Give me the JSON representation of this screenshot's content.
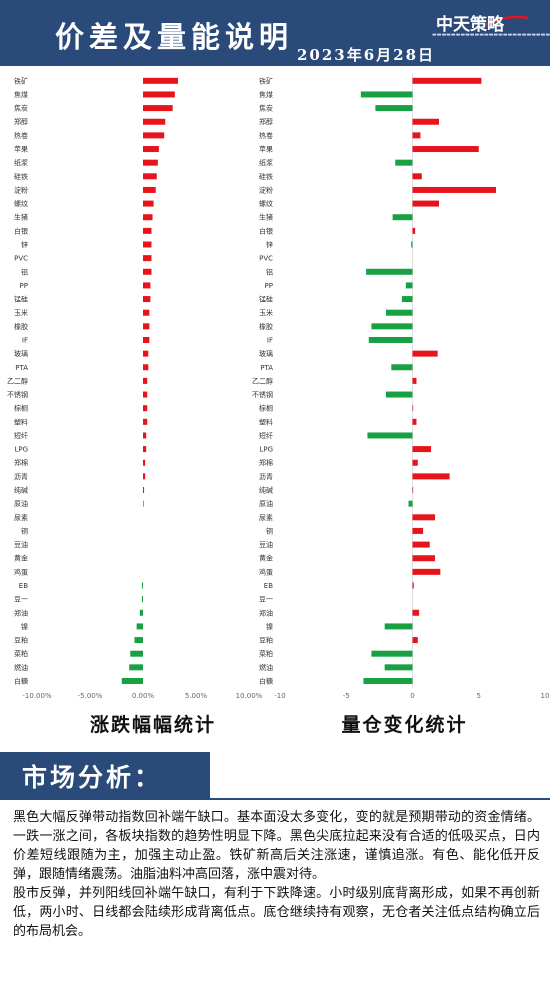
{
  "header": {
    "title": "价差及量能说明",
    "date": "2023年6月28日",
    "logo": "中天策略"
  },
  "colors": {
    "positive": "#e8141c",
    "negative": "#19a043",
    "header_bg": "#2a4a7a"
  },
  "chart_data": [
    {
      "type": "bar",
      "orientation": "horizontal",
      "title": "涨跌幅幅统计",
      "categories": [
        "铁矿",
        "焦煤",
        "焦炭",
        "郑醇",
        "热卷",
        "苹果",
        "纸浆",
        "硅铁",
        "淀粉",
        "螺纹",
        "生猪",
        "白银",
        "锌",
        "PVC",
        "铝",
        "PP",
        "锰硅",
        "玉米",
        "橡胶",
        "IF",
        "玻璃",
        "PTA",
        "乙二醇",
        "不锈钢",
        "棕榈",
        "塑料",
        "短纤",
        "LPG",
        "郑棉",
        "沥青",
        "纯碱",
        "原油",
        "尿素",
        "铜",
        "豆油",
        "黄金",
        "鸡蛋",
        "EB",
        "豆一",
        "郑油",
        "镍",
        "豆粕",
        "菜粕",
        "燃油",
        "白糖"
      ],
      "values": [
        3.3,
        3.0,
        2.8,
        2.1,
        2.0,
        1.5,
        1.4,
        1.3,
        1.2,
        1.0,
        0.9,
        0.8,
        0.8,
        0.8,
        0.8,
        0.7,
        0.7,
        0.6,
        0.6,
        0.6,
        0.5,
        0.5,
        0.4,
        0.4,
        0.4,
        0.4,
        0.3,
        0.3,
        0.2,
        0.2,
        0.1,
        0.05,
        0.0,
        0.0,
        0.0,
        0.0,
        0.0,
        -0.1,
        -0.1,
        -0.3,
        -0.6,
        -0.8,
        -1.2,
        -1.3,
        -2.0
      ],
      "xlim": [
        -10,
        10
      ],
      "xticks": [
        "-10.00%",
        "-5.00%",
        "0.00%",
        "5.00%",
        "10.00%"
      ]
    },
    {
      "type": "bar",
      "orientation": "horizontal",
      "title": "量仓变化统计",
      "categories": [
        "铁矿",
        "焦煤",
        "焦炭",
        "郑醇",
        "热卷",
        "苹果",
        "纸浆",
        "硅铁",
        "淀粉",
        "螺纹",
        "生猪",
        "白银",
        "锌",
        "PVC",
        "铝",
        "PP",
        "锰硅",
        "玉米",
        "橡胶",
        "IF",
        "玻璃",
        "PTA",
        "乙二醇",
        "不锈钢",
        "棕榈",
        "塑料",
        "短纤",
        "LPG",
        "郑棉",
        "沥青",
        "纯碱",
        "原油",
        "尿素",
        "铜",
        "豆油",
        "黄金",
        "鸡蛋",
        "EB",
        "豆一",
        "郑油",
        "镍",
        "豆粕",
        "菜粕",
        "燃油",
        "白糖"
      ],
      "values": [
        5.2,
        -3.9,
        -2.8,
        2.0,
        0.6,
        5.0,
        -1.3,
        0.7,
        6.3,
        2.0,
        -1.5,
        0.2,
        -0.1,
        0.0,
        -3.5,
        -0.5,
        -0.8,
        -2.0,
        -3.1,
        -3.3,
        1.9,
        -1.6,
        0.3,
        -2.0,
        0.05,
        0.3,
        -3.4,
        1.4,
        0.4,
        2.8,
        0.05,
        -0.3,
        1.7,
        0.8,
        1.3,
        1.7,
        2.1,
        0.1,
        0.0,
        0.5,
        -2.1,
        0.4,
        -3.1,
        -2.1,
        -3.7
      ],
      "xlim": [
        -10,
        10
      ],
      "xticks": [
        "-10",
        "-5",
        "0",
        "5",
        "10"
      ]
    }
  ],
  "market": {
    "title": "市场分析：",
    "paragraphs": [
      "黑色大幅反弹带动指数回补端午缺口。基本面没太多变化，变的就是预期带动的资金情绪。一跌一涨之间，各板块指数的趋势性明显下降。黑色尖底拉起来没有合适的低吸买点，日内价差短线跟随为主，加强主动止盈。铁矿新高后关注涨速，谨慎追涨。有色、能化低开反弹，跟随情绪震荡。油脂油料冲高回落，涨中震对待。",
      "股市反弹，并列阳线回补端午缺口，有利于下跌降速。小时级别底背离形成，如果不再创新低，两小时、日线都会陆续形成背离低点。底仓继续持有观察，无仓者关注低点结构确立后的布局机会。"
    ]
  }
}
